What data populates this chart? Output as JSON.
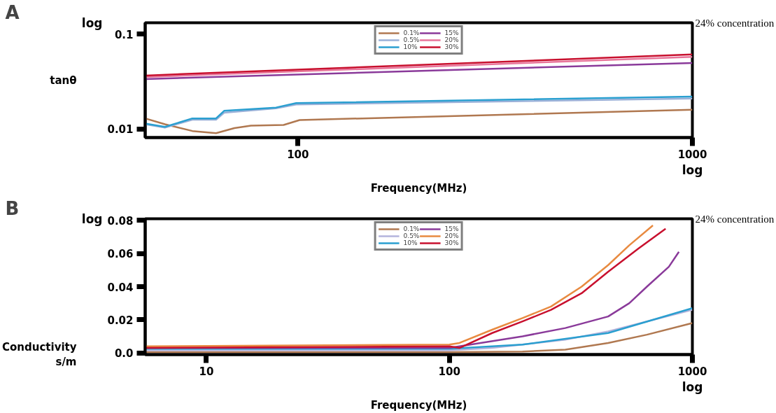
{
  "chart_data": [
    {
      "type": "line",
      "title": "A",
      "xlabel": "Frequency(MHz)",
      "ylabel": "tanθ",
      "log": "xy",
      "xlim": [
        41,
        1000
      ],
      "ylim": [
        0.0081,
        0.132
      ],
      "xticks": [
        100,
        1000
      ],
      "yticks": [
        0.01,
        0.1
      ],
      "grid": false,
      "legend": "top",
      "annotations": [
        "log",
        "log",
        "24% concentration"
      ],
      "series": [
        {
          "name": "0.1%",
          "color": "#b07850",
          "x": [
            41,
            46,
            54,
            62,
            69,
            76,
            92,
            101,
            1000
          ],
          "values": [
            0.0129,
            0.0112,
            0.0095,
            0.009,
            0.0102,
            0.0108,
            0.011,
            0.0124,
            0.0159
          ]
        },
        {
          "name": "0.5%",
          "color": "#9ab0d8",
          "x": [
            41,
            46,
            54,
            62,
            65,
            88,
            99,
            1000
          ],
          "values": [
            0.0112,
            0.0103,
            0.0125,
            0.0125,
            0.0148,
            0.0165,
            0.0181,
            0.0209
          ]
        },
        {
          "name": "10%",
          "color": "#2a9fd0",
          "x": [
            41,
            46,
            54,
            62,
            65,
            88,
            99,
            1000
          ],
          "values": [
            0.0114,
            0.0105,
            0.0129,
            0.0129,
            0.0155,
            0.0168,
            0.0187,
            0.0219
          ]
        },
        {
          "name": "15%",
          "color": "#8a3a9a",
          "x": [
            41,
            1000
          ],
          "values": [
            0.0336,
            0.0497
          ]
        },
        {
          "name": "20%",
          "color": "#e8749a",
          "x": [
            41,
            1000
          ],
          "values": [
            0.0353,
            0.0576
          ]
        },
        {
          "name": "30%",
          "color": "#c8102e",
          "x": [
            41,
            1000
          ],
          "values": [
            0.0366,
            0.0612
          ]
        }
      ]
    },
    {
      "type": "line",
      "title": "B",
      "xlabel": "Frequency(MHz)",
      "ylabel": "Conductivity\ns/m",
      "log": "x",
      "xlim": [
        5.6,
        1000
      ],
      "ylim": [
        -0.001,
        0.081
      ],
      "xticks": [
        10,
        100,
        1000
      ],
      "yticks": [
        {
          "value": 0,
          "label": "0.0"
        },
        0.02,
        0.04,
        0.06,
        0.08
      ],
      "grid": false,
      "legend": "top",
      "annotations": [
        "log",
        "log",
        "24% concentration"
      ],
      "series": [
        {
          "name": "0.1%",
          "color": "#b07850",
          "x": [
            5.6,
            100,
            200,
            300,
            450,
            650,
            1000
          ],
          "values": [
            0.0005,
            0.0005,
            0.0008,
            0.002,
            0.006,
            0.011,
            0.018
          ]
        },
        {
          "name": "0.5%",
          "color": "#b4b4dc",
          "x": [
            5.6,
            100,
            150,
            200,
            300,
            450,
            650,
            1000
          ],
          "values": [
            0.0015,
            0.0015,
            0.003,
            0.005,
            0.008,
            0.013,
            0.019,
            0.026
          ]
        },
        {
          "name": "10%",
          "color": "#2a9fd0",
          "x": [
            5.6,
            100,
            200,
            450,
            1000
          ],
          "values": [
            0.0025,
            0.0025,
            0.005,
            0.012,
            0.027
          ]
        },
        {
          "name": "15%",
          "color": "#8a3a9a",
          "x": [
            5.6,
            100,
            110,
            200,
            300,
            450,
            550,
            650,
            800,
            880
          ],
          "values": [
            0.003,
            0.003,
            0.004,
            0.01,
            0.015,
            0.022,
            0.03,
            0.04,
            0.052,
            0.061
          ]
        },
        {
          "name": "20%",
          "color": "#e88a40",
          "x": [
            5.6,
            100,
            110,
            150,
            200,
            262,
            350,
            450,
            550,
            688
          ],
          "values": [
            0.004,
            0.005,
            0.006,
            0.014,
            0.021,
            0.028,
            0.04,
            0.053,
            0.065,
            0.077
          ]
        },
        {
          "name": "30%",
          "color": "#c8102e",
          "x": [
            5.6,
            100,
            110,
            150,
            200,
            262,
            350,
            450,
            600,
            776
          ],
          "values": [
            0.003,
            0.004,
            0.003,
            0.012,
            0.019,
            0.026,
            0.036,
            0.049,
            0.063,
            0.075
          ]
        }
      ]
    }
  ]
}
